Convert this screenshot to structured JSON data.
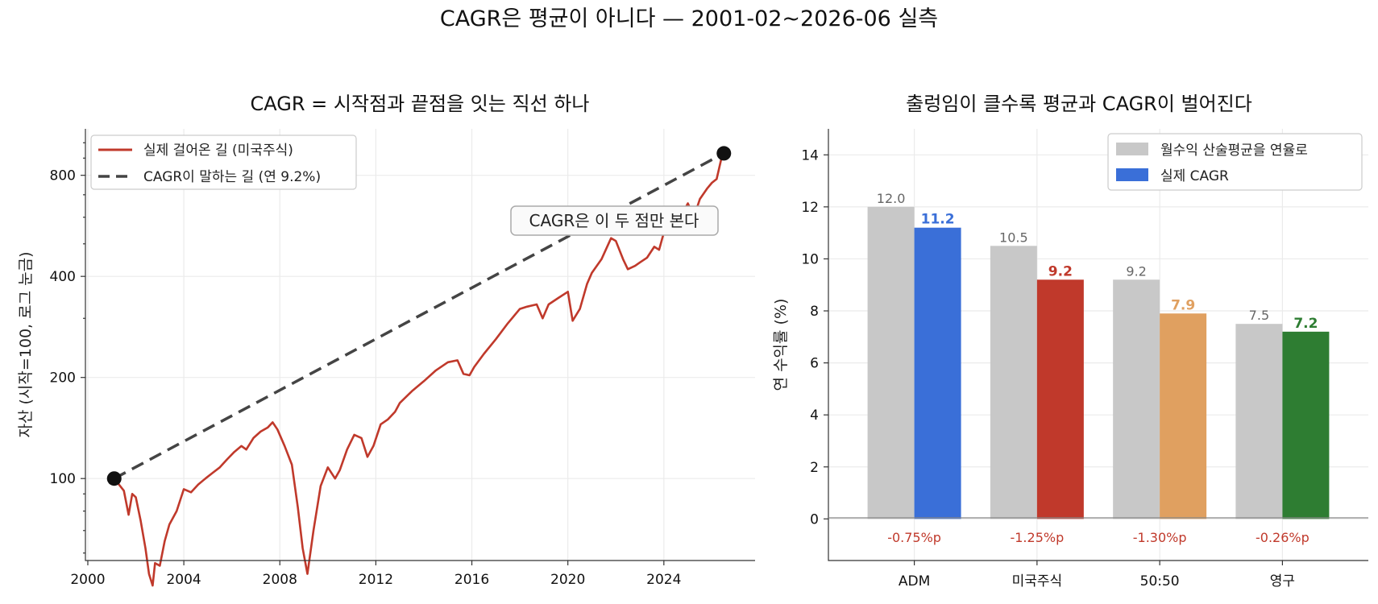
{
  "suptitle": "CAGR은 평균이 아니다 — 2001-02~2026-06 실측",
  "chart_data": [
    {
      "type": "line",
      "title": "CAGR = 시작점과 끝점을 잇는 직선 하나",
      "ylabel": "자산 (시작=100, 로그 눈금)",
      "xlabel": "",
      "yscale": "log",
      "ylim": [
        57,
        1100
      ],
      "xlim": [
        1999.9,
        2027.8
      ],
      "xticks": [
        "2000",
        "2004",
        "2008",
        "2012",
        "2016",
        "2020",
        "2024"
      ],
      "yticks": [
        "100",
        "200",
        "400",
        "800"
      ],
      "grid": true,
      "legend_position": "upper-left",
      "annotation": "CAGR은 이 두 점만 본다",
      "series": [
        {
          "name": "실제 걸어온 길 (미국주식)",
          "color": "#c0392b",
          "style": "solid",
          "x": [
            2001.1,
            2001.5,
            2001.7,
            2001.85,
            2002.0,
            2002.2,
            2002.4,
            2002.55,
            2002.7,
            2002.8,
            2003.0,
            2003.2,
            2003.4,
            2003.7,
            2004.0,
            2004.3,
            2004.6,
            2004.9,
            2005.2,
            2005.5,
            2005.8,
            2006.1,
            2006.4,
            2006.6,
            2006.9,
            2007.2,
            2007.5,
            2007.7,
            2007.9,
            2008.2,
            2008.5,
            2008.75,
            2008.95,
            2009.15,
            2009.4,
            2009.7,
            2010.0,
            2010.3,
            2010.5,
            2010.8,
            2011.1,
            2011.4,
            2011.65,
            2011.9,
            2012.2,
            2012.5,
            2012.8,
            2013.0,
            2013.5,
            2014.0,
            2014.5,
            2015.0,
            2015.4,
            2015.65,
            2015.9,
            2016.1,
            2016.5,
            2017.0,
            2017.5,
            2018.0,
            2018.3,
            2018.7,
            2018.95,
            2019.2,
            2019.6,
            2020.0,
            2020.2,
            2020.5,
            2020.8,
            2021.0,
            2021.4,
            2021.8,
            2022.0,
            2022.3,
            2022.5,
            2022.8,
            2023.0,
            2023.3,
            2023.6,
            2023.8,
            2024.0,
            2024.4,
            2024.8,
            2025.0,
            2025.25,
            2025.5,
            2025.8,
            2026.0,
            2026.2,
            2026.4
          ],
          "values": [
            100,
            92,
            78,
            90,
            88,
            75,
            62,
            52,
            48,
            56,
            55,
            65,
            73,
            80,
            93,
            91,
            96,
            100,
            104,
            108,
            114,
            120,
            125,
            122,
            132,
            138,
            142,
            147,
            140,
            125,
            110,
            82,
            62,
            52,
            70,
            95,
            108,
            100,
            106,
            122,
            135,
            132,
            116,
            125,
            145,
            150,
            158,
            168,
            182,
            195,
            210,
            222,
            225,
            205,
            203,
            215,
            235,
            260,
            290,
            320,
            325,
            330,
            300,
            330,
            345,
            360,
            295,
            320,
            380,
            410,
            450,
            520,
            510,
            450,
            420,
            430,
            440,
            455,
            490,
            480,
            540,
            600,
            620,
            660,
            600,
            680,
            730,
            760,
            780,
            900
          ]
        },
        {
          "name": "CAGR이 말하는 길 (연 9.2%)",
          "color": "#444444",
          "style": "dashed",
          "x": [
            2001.1,
            2026.5
          ],
          "values": [
            100,
            930
          ]
        }
      ]
    },
    {
      "type": "bar",
      "title": "출렁임이 클수록 평균과 CAGR이 벌어진다",
      "ylabel": "연 수익률 (%)",
      "xlabel": "",
      "ylim": [
        -1.6,
        15
      ],
      "yticks": [
        "0",
        "2",
        "4",
        "6",
        "8",
        "10",
        "12",
        "14"
      ],
      "grid": true,
      "legend_position": "upper-right",
      "categories": [
        "ADM",
        "미국주식",
        "50:50",
        "영구"
      ],
      "series": [
        {
          "name": "월수익 산술평균을 연율로",
          "color": "#c8c8c8",
          "values": [
            12.0,
            10.5,
            9.2,
            7.5
          ],
          "labels": [
            "12.0",
            "10.5",
            "9.2",
            "7.5"
          ]
        },
        {
          "name": "실제 CAGR",
          "legend_color": "#3a6fd8",
          "colors": [
            "#3a6fd8",
            "#c0392b",
            "#e0a060",
            "#2e7d32"
          ],
          "values": [
            11.2,
            9.2,
            7.9,
            7.2
          ],
          "labels": [
            "11.2",
            "9.2",
            "7.9",
            "7.2"
          ]
        }
      ],
      "differences": [
        "-0.75%p",
        "-1.25%p",
        "-1.30%p",
        "-0.26%p"
      ],
      "difference_color": "#c0392b"
    }
  ]
}
